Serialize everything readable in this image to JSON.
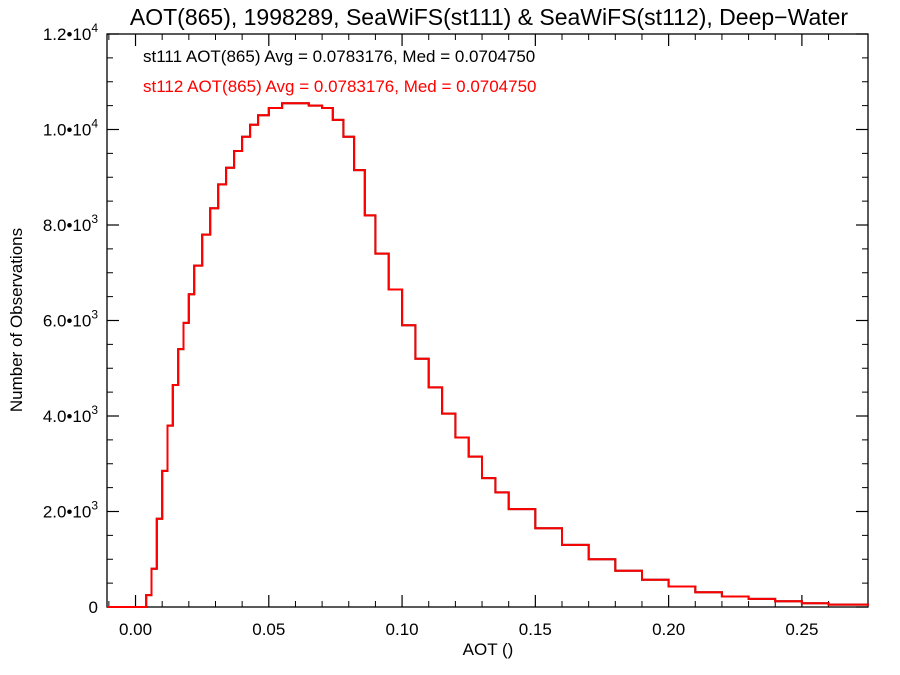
{
  "chart_data": {
    "type": "line",
    "title": "AOT(865), 1998289, SeaWiFS(st111) & SeaWiFS(st112), Deep−Water",
    "xlabel": "AOT ()",
    "ylabel": "Number of Observations",
    "xlim": [
      -0.0107,
      0.2748
    ],
    "ylim": [
      0,
      12000
    ],
    "x_tick_values": [
      0.0,
      0.05,
      0.1,
      0.15,
      0.2,
      0.25
    ],
    "x_tick_labels": [
      "0.00",
      "0.05",
      "0.10",
      "0.15",
      "0.20",
      "0.25"
    ],
    "y_ticks": [
      {
        "value": 0,
        "mant": "0",
        "exp": ""
      },
      {
        "value": 2000,
        "mant": "2.0•10",
        "exp": "3"
      },
      {
        "value": 4000,
        "mant": "4.0•10",
        "exp": "3"
      },
      {
        "value": 6000,
        "mant": "6.0•10",
        "exp": "3"
      },
      {
        "value": 8000,
        "mant": "8.0•10",
        "exp": "3"
      },
      {
        "value": 10000,
        "mant": "1.0•10",
        "exp": "4"
      },
      {
        "value": 12000,
        "mant": "1.2•10",
        "exp": "4"
      }
    ],
    "step_style": "histogram",
    "series": [
      {
        "name": "st111",
        "color": "#000000",
        "annotation": "st111 AOT(865) Avg = 0.0783176, Med = 0.0704750",
        "x": [
          -0.0107,
          0.0,
          0.004,
          0.006,
          0.008,
          0.01,
          0.012,
          0.014,
          0.016,
          0.018,
          0.02,
          0.022,
          0.025,
          0.028,
          0.031,
          0.034,
          0.037,
          0.04,
          0.043,
          0.046,
          0.05,
          0.055,
          0.06,
          0.065,
          0.07,
          0.074,
          0.078,
          0.082,
          0.086,
          0.09,
          0.095,
          0.1,
          0.105,
          0.11,
          0.115,
          0.12,
          0.125,
          0.13,
          0.135,
          0.14,
          0.15,
          0.16,
          0.17,
          0.18,
          0.19,
          0.2,
          0.21,
          0.22,
          0.23,
          0.24,
          0.25,
          0.26,
          0.2748
        ],
        "values": [
          0,
          0,
          250,
          800,
          1850,
          2850,
          3800,
          4650,
          5400,
          5950,
          6550,
          7150,
          7800,
          8350,
          8850,
          9200,
          9550,
          9850,
          10100,
          10300,
          10450,
          10550,
          10550,
          10500,
          10450,
          10200,
          9850,
          9150,
          8200,
          7400,
          6650,
          5900,
          5200,
          4600,
          4050,
          3550,
          3150,
          2700,
          2400,
          2050,
          1650,
          1300,
          1000,
          760,
          570,
          430,
          310,
          220,
          170,
          120,
          80,
          50,
          30
        ]
      },
      {
        "name": "st112",
        "color": "#ff0000",
        "annotation": "st112 AOT(865) Avg = 0.0783176, Med = 0.0704750",
        "x": [
          -0.0107,
          0.0,
          0.004,
          0.006,
          0.008,
          0.01,
          0.012,
          0.014,
          0.016,
          0.018,
          0.02,
          0.022,
          0.025,
          0.028,
          0.031,
          0.034,
          0.037,
          0.04,
          0.043,
          0.046,
          0.05,
          0.055,
          0.06,
          0.065,
          0.07,
          0.074,
          0.078,
          0.082,
          0.086,
          0.09,
          0.095,
          0.1,
          0.105,
          0.11,
          0.115,
          0.12,
          0.125,
          0.13,
          0.135,
          0.14,
          0.15,
          0.16,
          0.17,
          0.18,
          0.19,
          0.2,
          0.21,
          0.22,
          0.23,
          0.24,
          0.25,
          0.26,
          0.2748
        ],
        "values": [
          0,
          0,
          250,
          800,
          1850,
          2850,
          3800,
          4650,
          5400,
          5950,
          6550,
          7150,
          7800,
          8350,
          8850,
          9200,
          9550,
          9850,
          10100,
          10300,
          10450,
          10550,
          10550,
          10500,
          10450,
          10200,
          9850,
          9150,
          8200,
          7400,
          6650,
          5900,
          5200,
          4600,
          4050,
          3550,
          3150,
          2700,
          2400,
          2050,
          1650,
          1300,
          1000,
          760,
          570,
          430,
          310,
          220,
          170,
          120,
          80,
          50,
          30
        ]
      }
    ]
  }
}
